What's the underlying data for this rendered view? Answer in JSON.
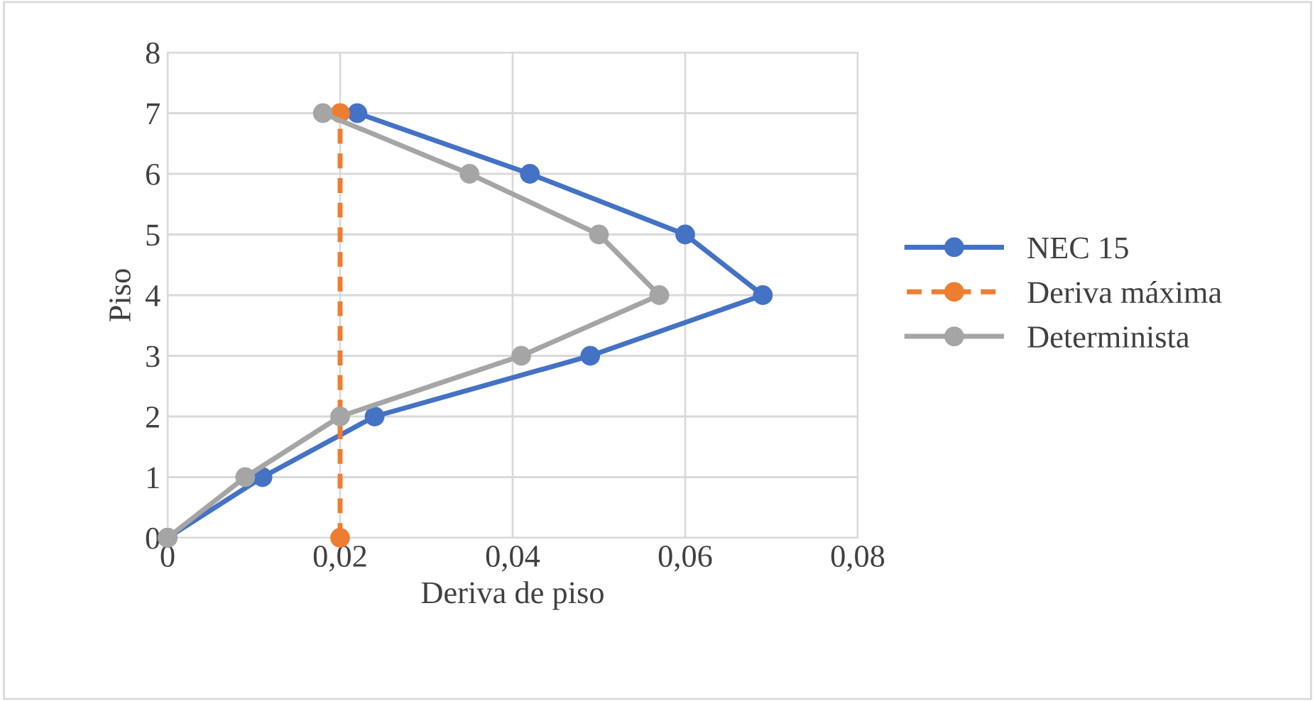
{
  "chart_data": {
    "type": "line",
    "xlabel": "Deriva de piso",
    "ylabel": "Piso",
    "xlim": [
      0,
      0.08
    ],
    "xticks": [
      {
        "value": 0,
        "label": "0"
      },
      {
        "value": 0.02,
        "label": "0,02"
      },
      {
        "value": 0.04,
        "label": "0,04"
      },
      {
        "value": 0.06,
        "label": "0,06"
      },
      {
        "value": 0.08,
        "label": "0,08"
      }
    ],
    "ylim": [
      0,
      8
    ],
    "yticks": [
      0,
      1,
      2,
      3,
      4,
      5,
      6,
      7,
      8
    ],
    "grid": true,
    "legend": "right",
    "marker": "circle",
    "series": [
      {
        "name": "NEC 15",
        "color": "#4472c4",
        "line_style": "solid",
        "x": [
          0,
          0.011,
          0.024,
          0.049,
          0.069,
          0.06,
          0.042,
          0.022
        ],
        "values": [
          0,
          1,
          2,
          3,
          4,
          5,
          6,
          7
        ]
      },
      {
        "name": "Deriva máxima",
        "color": "#ed7d31",
        "line_style": "dashed",
        "x": [
          0.02,
          0.02
        ],
        "values": [
          0,
          7
        ]
      },
      {
        "name": "Determinista",
        "color": "#a5a5a5",
        "line_style": "solid",
        "x": [
          0,
          0.009,
          0.02,
          0.041,
          0.057,
          0.05,
          0.035,
          0.018
        ],
        "values": [
          0,
          1,
          2,
          3,
          4,
          5,
          6,
          7
        ]
      }
    ]
  }
}
